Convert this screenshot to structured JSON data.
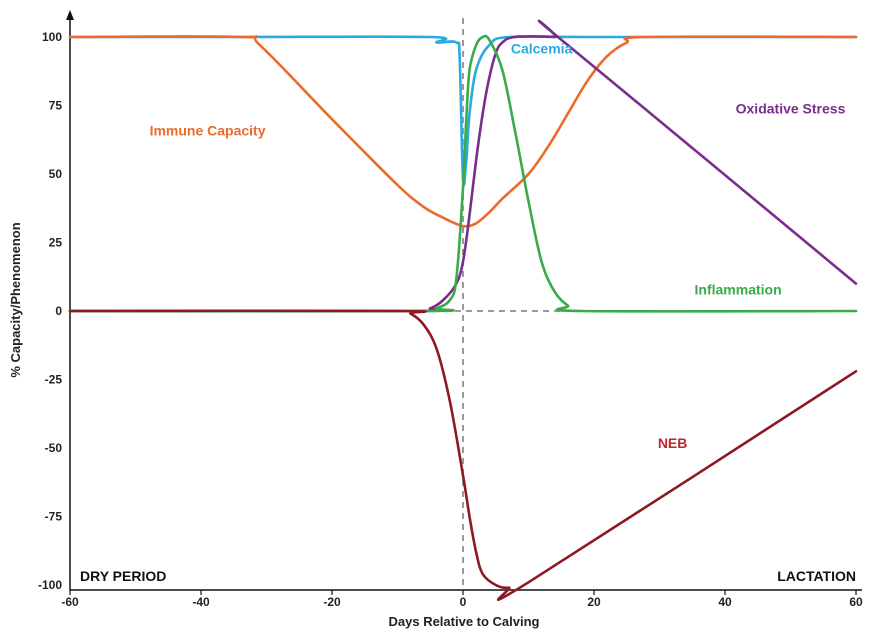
{
  "chart_data": {
    "type": "line",
    "xlabel": "Days Relative to Calving",
    "ylabel": "% Capacity/Phenomenon",
    "xlim": [
      -60,
      60
    ],
    "ylim": [
      -100,
      100
    ],
    "x_ticks": [
      -60,
      -40,
      -20,
      0,
      20,
      40,
      60
    ],
    "y_ticks": [
      100,
      75,
      50,
      25,
      0,
      -25,
      -50,
      -75,
      -100
    ],
    "grid": false,
    "reference_lines": [
      {
        "axis": "x",
        "value": 0,
        "style": "dashed"
      },
      {
        "axis": "y",
        "value": 0,
        "style": "dashed"
      }
    ],
    "region_labels": {
      "left": "DRY PERIOD",
      "right": "LACTATION"
    },
    "series": [
      {
        "name": "Calcemia",
        "color": "#29abe2",
        "points": [
          [
            -60,
            100
          ],
          [
            -35,
            100
          ],
          [
            -5,
            100
          ],
          [
            -4,
            98
          ],
          [
            -1,
            98
          ],
          [
            -0.5,
            92
          ],
          [
            0,
            48
          ],
          [
            0.5,
            55
          ],
          [
            1,
            72
          ],
          [
            2,
            88
          ],
          [
            4,
            97
          ],
          [
            7,
            100
          ],
          [
            20,
            100
          ],
          [
            60,
            100
          ]
        ]
      },
      {
        "name": "Immune Capacity",
        "color": "#ec6a2c",
        "points": [
          [
            -60,
            100
          ],
          [
            -34,
            100
          ],
          [
            -31,
            97
          ],
          [
            -20,
            70
          ],
          [
            -10,
            46
          ],
          [
            -6,
            38
          ],
          [
            -3,
            34
          ],
          [
            0,
            31
          ],
          [
            2,
            32
          ],
          [
            4,
            36
          ],
          [
            6,
            41
          ],
          [
            10,
            50
          ],
          [
            13,
            60
          ],
          [
            16,
            72
          ],
          [
            19,
            84
          ],
          [
            22,
            93
          ],
          [
            25,
            98
          ],
          [
            28,
            100
          ],
          [
            60,
            100
          ]
        ]
      },
      {
        "name": "Oxidative Stress",
        "color": "#7b2d8e",
        "points": [
          [
            -60,
            0
          ],
          [
            -8,
            0
          ],
          [
            -5,
            1
          ],
          [
            -3,
            4
          ],
          [
            -1,
            10
          ],
          [
            0,
            18
          ],
          [
            1,
            35
          ],
          [
            2,
            55
          ],
          [
            3,
            72
          ],
          [
            4,
            85
          ],
          [
            5,
            94
          ],
          [
            6,
            98
          ],
          [
            8,
            100
          ],
          [
            14,
            100
          ],
          [
            15,
            99
          ],
          [
            60,
            10
          ]
        ]
      },
      {
        "name": "Inflammation",
        "color": "#3aaa4a",
        "points": [
          [
            -60,
            0
          ],
          [
            -6,
            0
          ],
          [
            -4,
            1
          ],
          [
            -2,
            4
          ],
          [
            -1,
            12
          ],
          [
            0,
            45
          ],
          [
            0.5,
            70
          ],
          [
            1,
            88
          ],
          [
            2,
            97
          ],
          [
            3,
            100
          ],
          [
            4,
            99
          ],
          [
            6,
            88
          ],
          [
            8,
            65
          ],
          [
            10,
            40
          ],
          [
            12,
            18
          ],
          [
            14,
            7
          ],
          [
            16,
            2
          ],
          [
            18,
            0
          ],
          [
            60,
            0
          ]
        ]
      },
      {
        "name": "NEB",
        "color": "#8b1a23",
        "points": [
          [
            -60,
            0
          ],
          [
            -10,
            0
          ],
          [
            -8,
            -1
          ],
          [
            -6,
            -5
          ],
          [
            -4,
            -14
          ],
          [
            -2,
            -33
          ],
          [
            0,
            -60
          ],
          [
            1,
            -75
          ],
          [
            2,
            -88
          ],
          [
            3,
            -96
          ],
          [
            5,
            -100
          ],
          [
            7,
            -101
          ],
          [
            10,
            -99
          ],
          [
            60,
            -22
          ]
        ]
      }
    ],
    "annotations": [
      {
        "text": "Calcemia",
        "x": 12,
        "y": 94,
        "color": "#29abe2"
      },
      {
        "text": "Immune Capacity",
        "x": -39,
        "y": 64,
        "color": "#ec6a2c"
      },
      {
        "text": "Oxidative Stress",
        "x": 50,
        "y": 72,
        "color": "#7b2d8e"
      },
      {
        "text": "Inflammation",
        "x": 42,
        "y": 6,
        "color": "#3aaa4a"
      },
      {
        "text": "NEB",
        "x": 32,
        "y": -50,
        "color": "#c0272d"
      }
    ]
  }
}
